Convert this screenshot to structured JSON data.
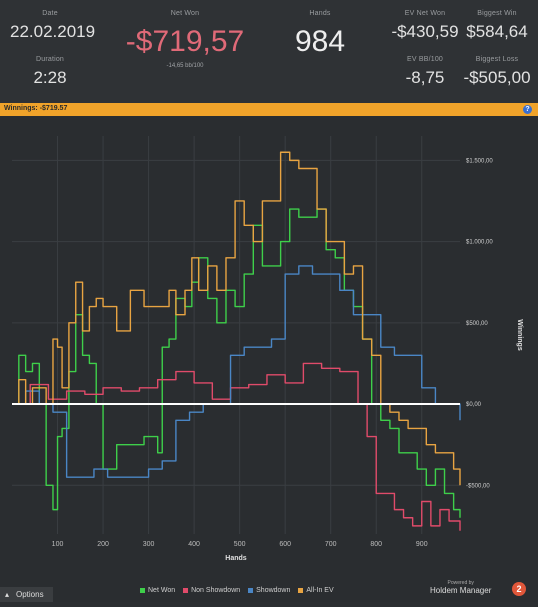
{
  "stats": {
    "date": {
      "label": "Date",
      "value": "22.02.2019"
    },
    "duration": {
      "label": "Duration",
      "value": "2:28"
    },
    "net_won": {
      "label": "Net Won",
      "value": "-$719,57",
      "sub": "-14,65 bb/100"
    },
    "hands": {
      "label": "Hands",
      "value": "984"
    },
    "ev_net_won": {
      "label": "EV Net Won",
      "value": "-$430,59"
    },
    "ev_bb100": {
      "label": "EV BB/100",
      "value": "-8,75"
    },
    "biggest_win": {
      "label": "Biggest Win",
      "value": "$584,64"
    },
    "biggest_loss": {
      "label": "Biggest Loss",
      "value": "-$505,00"
    }
  },
  "section_bar": {
    "label": "Winnings: -$719.57",
    "help": "?"
  },
  "chart_data": {
    "type": "line",
    "xlabel": "Hands",
    "ylabel": "Winnings",
    "xlim": [
      0,
      984
    ],
    "ylim": [
      -800,
      1650
    ],
    "x_ticks": [
      100,
      200,
      300,
      400,
      500,
      600,
      700,
      800,
      900
    ],
    "y_ticks": [
      {
        "v": 1500,
        "label": "$1.500,00"
      },
      {
        "v": 1000,
        "label": "$1.000,00"
      },
      {
        "v": 500,
        "label": "$500,00"
      },
      {
        "v": 0,
        "label": "$0,00"
      },
      {
        "v": -500,
        "label": "-$500,00"
      }
    ],
    "grid": true,
    "legend": "bottom",
    "series": [
      {
        "name": "Net Won",
        "color": "#3ecf4a",
        "x": [
          0,
          15,
          30,
          45,
          60,
          75,
          90,
          100,
          110,
          125,
          140,
          155,
          170,
          185,
          200,
          230,
          260,
          290,
          320,
          330,
          345,
          360,
          380,
          395,
          410,
          430,
          450,
          470,
          490,
          510,
          530,
          550,
          570,
          590,
          610,
          630,
          650,
          670,
          690,
          710,
          730,
          750,
          770,
          790,
          810,
          830,
          850,
          870,
          890,
          910,
          930,
          950,
          970,
          984
        ],
        "y": [
          0,
          300,
          200,
          250,
          0,
          -500,
          -650,
          -200,
          -150,
          200,
          550,
          300,
          250,
          0,
          -400,
          -250,
          -250,
          -200,
          -300,
          350,
          400,
          650,
          600,
          750,
          900,
          650,
          500,
          700,
          600,
          800,
          1100,
          850,
          850,
          1000,
          1200,
          1150,
          1150,
          1200,
          950,
          900,
          700,
          600,
          400,
          0,
          -100,
          -150,
          -300,
          -300,
          -400,
          -500,
          -400,
          -550,
          -650,
          -700
        ]
      },
      {
        "name": "Non Showdown",
        "color": "#e04b6a",
        "x": [
          0,
          40,
          80,
          120,
          160,
          200,
          240,
          280,
          320,
          360,
          400,
          440,
          480,
          520,
          560,
          600,
          640,
          680,
          720,
          760,
          780,
          800,
          820,
          840,
          860,
          880,
          900,
          920,
          940,
          960,
          984
        ],
        "y": [
          0,
          120,
          30,
          80,
          60,
          100,
          80,
          100,
          150,
          200,
          130,
          30,
          100,
          120,
          180,
          130,
          250,
          220,
          200,
          0,
          -200,
          -550,
          -550,
          -650,
          -700,
          -750,
          -600,
          -750,
          -650,
          -720,
          -780
        ]
      },
      {
        "name": "Showdown",
        "color": "#4a86c5",
        "x": [
          0,
          30,
          60,
          90,
          120,
          150,
          180,
          210,
          240,
          270,
          300,
          330,
          360,
          390,
          420,
          450,
          480,
          510,
          540,
          570,
          600,
          630,
          660,
          690,
          720,
          750,
          780,
          810,
          840,
          870,
          900,
          930,
          960,
          984
        ],
        "y": [
          0,
          80,
          0,
          -50,
          -450,
          -450,
          -400,
          -450,
          -450,
          -450,
          -400,
          -350,
          -100,
          -50,
          0,
          0,
          300,
          350,
          350,
          400,
          800,
          850,
          800,
          800,
          700,
          550,
          550,
          350,
          300,
          300,
          100,
          0,
          0,
          -100
        ]
      },
      {
        "name": "All-In EV",
        "color": "#e8a442",
        "x": [
          0,
          15,
          30,
          45,
          60,
          75,
          90,
          100,
          110,
          125,
          140,
          155,
          170,
          185,
          200,
          230,
          260,
          290,
          320,
          345,
          360,
          380,
          395,
          410,
          430,
          450,
          470,
          490,
          510,
          530,
          550,
          570,
          590,
          610,
          630,
          650,
          670,
          690,
          710,
          730,
          750,
          770,
          790,
          810,
          830,
          850,
          870,
          890,
          910,
          930,
          950,
          970,
          984
        ],
        "y": [
          0,
          150,
          0,
          100,
          100,
          0,
          400,
          350,
          100,
          500,
          750,
          450,
          600,
          650,
          600,
          450,
          700,
          600,
          600,
          700,
          550,
          700,
          900,
          700,
          850,
          700,
          900,
          1250,
          1100,
          1000,
          1250,
          1250,
          1550,
          1500,
          1450,
          1450,
          1200,
          1000,
          1000,
          800,
          850,
          400,
          300,
          0,
          -50,
          -100,
          -150,
          -150,
          -250,
          -300,
          -300,
          -400,
          -500
        ]
      }
    ],
    "baseline": {
      "y": 0,
      "color": "#ffffff"
    }
  },
  "options_label": "Options",
  "brand": {
    "small": "Powered by",
    "name": "Holdem Manager",
    "logo": "2"
  }
}
